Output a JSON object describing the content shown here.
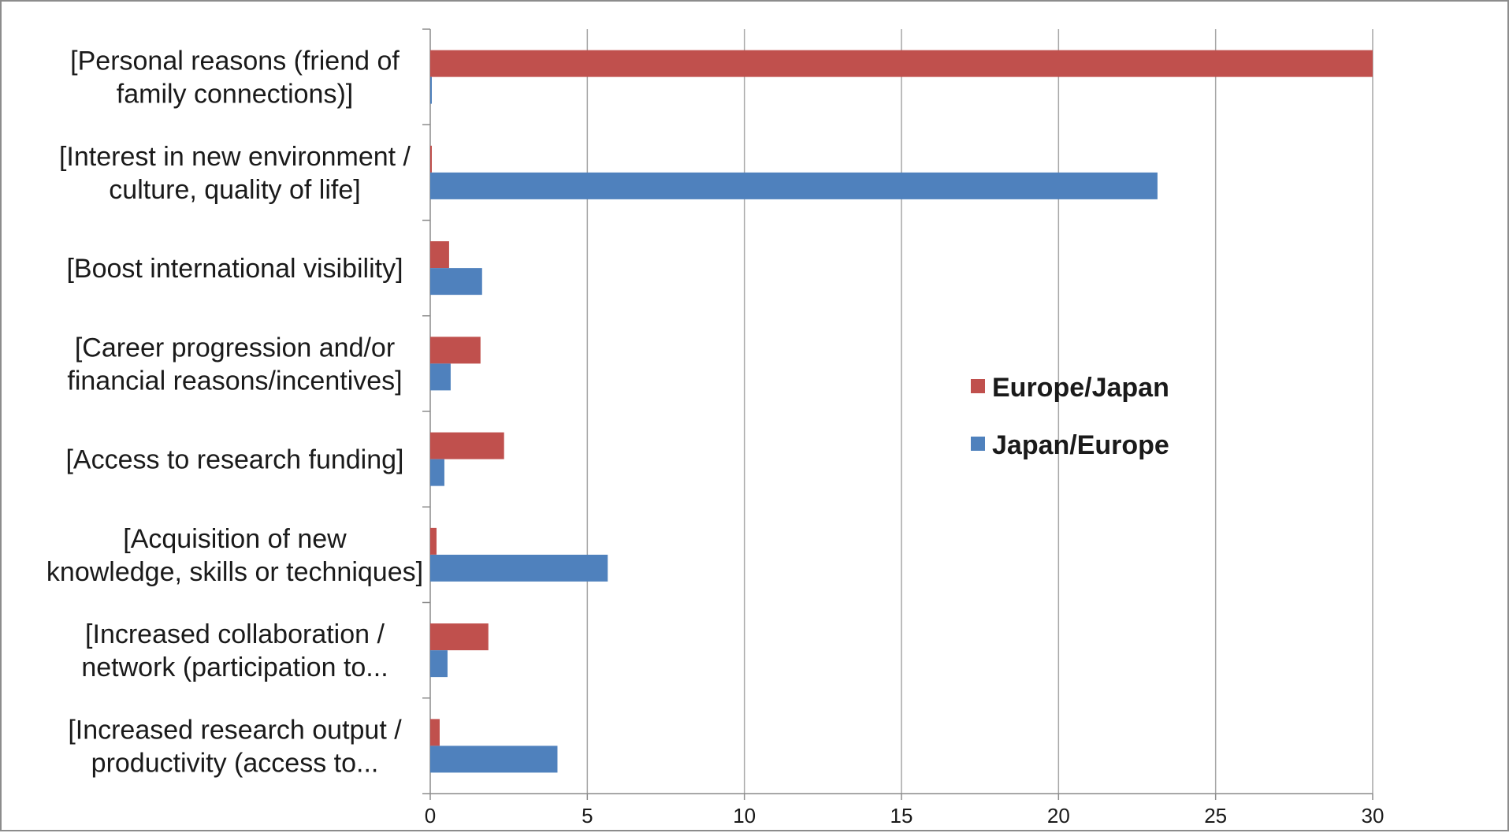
{
  "chart_data": {
    "type": "bar",
    "orientation": "horizontal",
    "categories": [
      "[Personal reasons (friend of family connections)]",
      "[Interest in new environment / culture, quality of life]",
      "[Boost international visibility]",
      "[Career progression and/or financial reasons/incentives]",
      "[Access to research funding]",
      "[Acquisition of new knowledge, skills or techniques]",
      "[Increased collaboration / network (participation to...",
      "[Increased research output / productivity (access to..."
    ],
    "category_label_lines": [
      [
        "[Personal reasons (friend of",
        "family connections)]"
      ],
      [
        "[Interest in new environment /",
        "culture, quality of life]"
      ],
      [
        "[Boost international visibility]"
      ],
      [
        "[Career progression and/or",
        "financial reasons/incentives]"
      ],
      [
        "[Access to research funding]"
      ],
      [
        "[Acquisition of new",
        "knowledge, skills or techniques]"
      ],
      [
        "[Increased collaboration /",
        "network (participation to..."
      ],
      [
        "[Increased research output /",
        "productivity (access to..."
      ]
    ],
    "series": [
      {
        "name": "Europe/Japan",
        "color": "#c0504d",
        "values": [
          30,
          0.05,
          0.6,
          1.6,
          2.35,
          0.2,
          1.85,
          0.3
        ]
      },
      {
        "name": "Japan/Europe",
        "color": "#4f81bd",
        "values": [
          0.05,
          23.15,
          1.65,
          0.65,
          0.45,
          5.65,
          0.55,
          4.05
        ]
      }
    ],
    "xlim": [
      0,
      30
    ],
    "xticks": [
      "0",
      "5",
      "10",
      "15",
      "20",
      "25",
      "30"
    ],
    "grid": true,
    "legend_position": "right-center",
    "title": "",
    "xlabel": "",
    "ylabel": ""
  }
}
